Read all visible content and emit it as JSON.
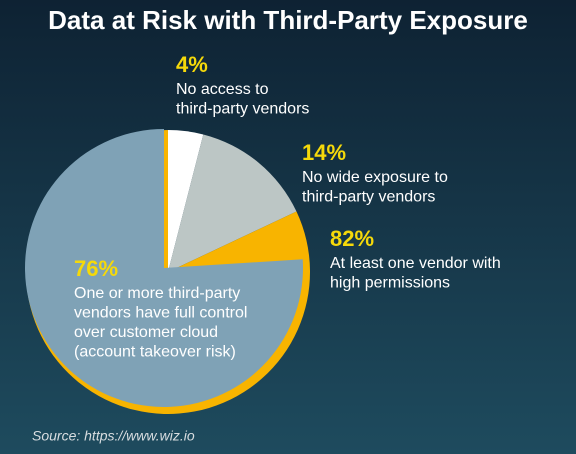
{
  "chart_data": {
    "type": "pie",
    "title": "Data at Risk with Third-Party Exposure",
    "source": "Source: https://www.wiz.io",
    "values": [
      4,
      14,
      82,
      76
    ],
    "value_labels": [
      "4%",
      "14%",
      "82%",
      "76%"
    ],
    "colors": [
      "#ffffff",
      "#bcc6c5",
      "#f8b400",
      "#7fa2b6"
    ],
    "descriptions": [
      [
        "No access to",
        "third-party vendors"
      ],
      [
        "No wide exposure to",
        "third-party vendors"
      ],
      [
        "At least one vendor with",
        "high permissions"
      ],
      [
        "One or more third-party",
        "vendors have full control",
        "over customer cloud",
        "(account takeover risk)"
      ]
    ]
  }
}
